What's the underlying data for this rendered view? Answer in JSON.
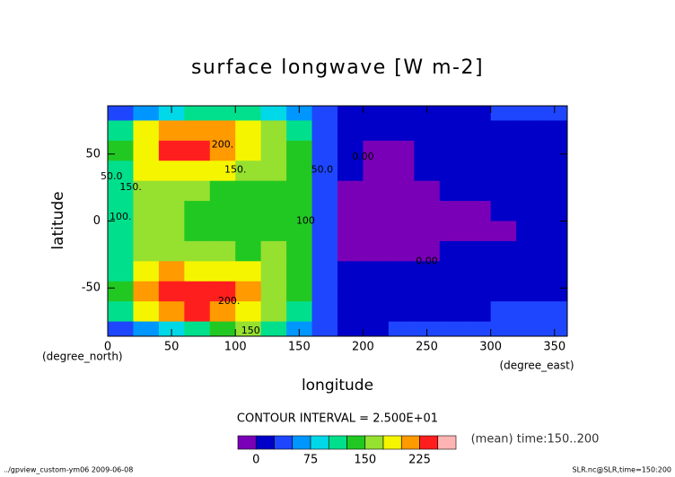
{
  "chart_data": {
    "type": "contourf",
    "title": "surface longwave [W m-2]",
    "xlabel": "longitude",
    "ylabel": "latitude",
    "xunit": "(degree_east)",
    "yunit": "(degree_north)",
    "xlim": [
      0,
      360
    ],
    "ylim": [
      -86,
      86
    ],
    "xticks": [
      0,
      50,
      100,
      150,
      200,
      250,
      300,
      350
    ],
    "yticks": [
      -50,
      0,
      50
    ],
    "grid": false,
    "field": {
      "x": [
        10,
        30,
        50,
        70,
        90,
        110,
        130,
        150,
        170,
        190,
        210,
        230,
        250,
        270,
        290,
        310,
        330,
        350
      ],
      "y": [
        82.5,
        67.5,
        52.5,
        37.5,
        22.5,
        7.5,
        -7.5,
        -22.5,
        -37.5,
        -52.5,
        -67.5,
        -82.5
      ],
      "z": [
        [
          40,
          60,
          90,
          110,
          110,
          100,
          80,
          60,
          30,
          10,
          10,
          10,
          15,
          20,
          20,
          25,
          25,
          25
        ],
        [
          110,
          190,
          215,
          215,
          205,
          180,
          150,
          110,
          40,
          10,
          5,
          5,
          10,
          15,
          20,
          20,
          20,
          20
        ],
        [
          130,
          195,
          240,
          230,
          210,
          180,
          160,
          130,
          40,
          5,
          -5,
          -5,
          5,
          10,
          15,
          15,
          15,
          15
        ],
        [
          120,
          175,
          195,
          190,
          180,
          170,
          160,
          140,
          40,
          0,
          -10,
          -5,
          0,
          5,
          10,
          10,
          10,
          10
        ],
        [
          110,
          160,
          170,
          150,
          145,
          140,
          145,
          130,
          40,
          -5,
          -10,
          -10,
          -5,
          0,
          5,
          10,
          10,
          10
        ],
        [
          100,
          165,
          155,
          140,
          135,
          130,
          140,
          125,
          40,
          -5,
          -10,
          -10,
          -10,
          -10,
          -5,
          0,
          10,
          10
        ],
        [
          100,
          165,
          155,
          140,
          135,
          130,
          140,
          125,
          40,
          -5,
          -10,
          -10,
          -10,
          -10,
          -5,
          -5,
          5,
          10
        ],
        [
          110,
          165,
          170,
          165,
          150,
          145,
          150,
          130,
          40,
          -5,
          -10,
          -10,
          -5,
          0,
          5,
          10,
          10,
          10
        ],
        [
          120,
          185,
          200,
          195,
          190,
          180,
          165,
          140,
          40,
          0,
          5,
          5,
          5,
          5,
          10,
          15,
          20,
          20
        ],
        [
          130,
          200,
          240,
          235,
          225,
          200,
          170,
          130,
          40,
          10,
          10,
          10,
          15,
          15,
          20,
          20,
          20,
          20
        ],
        [
          110,
          180,
          215,
          225,
          215,
          190,
          160,
          110,
          40,
          15,
          15,
          15,
          20,
          20,
          20,
          25,
          25,
          25
        ],
        [
          40,
          60,
          90,
          120,
          140,
          150,
          120,
          70,
          30,
          20,
          20,
          25,
          25,
          25,
          25,
          25,
          25,
          30
        ]
      ]
    },
    "levels": [
      -25,
      0,
      25,
      50,
      75,
      100,
      125,
      150,
      175,
      200,
      225,
      250,
      275
    ],
    "colors": [
      "#7a00b8",
      "#0000c8",
      "#1e46ff",
      "#0096ff",
      "#00d8e8",
      "#00e08c",
      "#22c822",
      "#96e030",
      "#f5f500",
      "#ff9a00",
      "#ff1e1e",
      "#ffb4b4"
    ],
    "contour_labels": [
      {
        "text": "200.",
        "lon": 90,
        "lat": 57
      },
      {
        "text": "150.",
        "lon": 100,
        "lat": 38
      },
      {
        "text": "200.",
        "lon": 95,
        "lat": -60
      },
      {
        "text": "150",
        "lon": 112,
        "lat": -82
      },
      {
        "text": "100.",
        "lon": 10,
        "lat": 3
      },
      {
        "text": "150.",
        "lon": 18,
        "lat": 25
      },
      {
        "text": "50.0",
        "lon": 3,
        "lat": 33
      },
      {
        "text": "100",
        "lon": 155,
        "lat": 0
      },
      {
        "text": "50.0",
        "lon": 168,
        "lat": 38
      },
      {
        "text": "0.00",
        "lon": 200,
        "lat": 48
      },
      {
        "text": "0.00",
        "lon": 250,
        "lat": -30
      }
    ],
    "contour_interval": "CONTOUR INTERVAL = 2.500E+01",
    "colorbar_ticks": [
      0,
      75,
      150,
      225
    ],
    "note": "(mean) time:150..200",
    "footer_left": "../gpview_custom-ym06  2009-06-08",
    "footer_right": "SLR.nc@SLR,time=150:200"
  }
}
